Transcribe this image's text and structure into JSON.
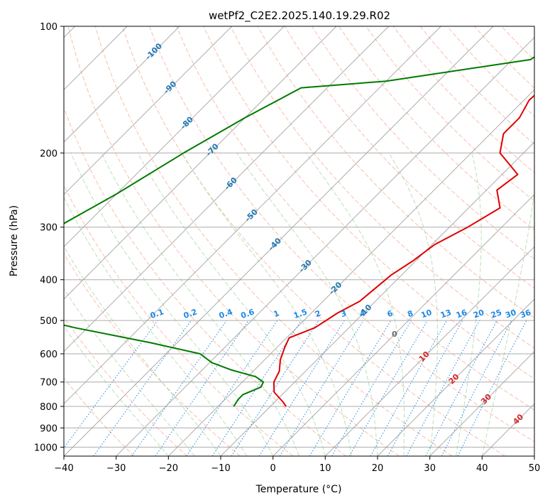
{
  "chart_data": {
    "type": "line",
    "title": "wetPf2_C2E2.2025.140.19.29.R02",
    "xlabel": "Temperature (°C)",
    "ylabel": "Pressure (hPa)",
    "xlim": [
      -40,
      50
    ],
    "ylim": [
      1050,
      100
    ],
    "y_scale": "log",
    "x_ticks": [
      "−40",
      "−30",
      "−20",
      "−10",
      "0",
      "10",
      "20",
      "30",
      "40",
      "50"
    ],
    "y_ticks": [
      "100",
      "200",
      "300",
      "400",
      "500",
      "600",
      "700",
      "800",
      "900",
      "1000"
    ],
    "y_tick_values": [
      100,
      200,
      300,
      400,
      500,
      600,
      700,
      800,
      900,
      1000
    ],
    "skew": 45,
    "grid": true,
    "legend": "none",
    "series": [
      {
        "color": "#e00000",
        "points": [
          [
            -25.5,
            100
          ],
          [
            -25.5,
            110
          ],
          [
            -22,
            118
          ],
          [
            -18.5,
            130
          ],
          [
            -19,
            150
          ],
          [
            -17.5,
            165
          ],
          [
            -17.5,
            180
          ],
          [
            -14.5,
            200
          ],
          [
            -7,
            225
          ],
          [
            -8,
            245
          ],
          [
            -4,
            270
          ],
          [
            -6.5,
            300
          ],
          [
            -9.5,
            330
          ],
          [
            -10.5,
            360
          ],
          [
            -12,
            390
          ],
          [
            -12.5,
            420
          ],
          [
            -13,
            450
          ],
          [
            -15,
            480
          ],
          [
            -16.5,
            520
          ],
          [
            -19.5,
            550
          ],
          [
            -18.5,
            580
          ],
          [
            -17,
            620
          ],
          [
            -15,
            660
          ],
          [
            -14,
            700
          ],
          [
            -12,
            740
          ],
          [
            -8.5,
            780
          ],
          [
            -7,
            800
          ]
        ]
      },
      {
        "color": "#007a00",
        "points": [
          [
            -25,
            100
          ],
          [
            -25,
            110
          ],
          [
            -26.5,
            120
          ],
          [
            -50,
            135
          ],
          [
            -65,
            140
          ],
          [
            -70,
            165
          ],
          [
            -75,
            200
          ],
          [
            -80,
            250
          ],
          [
            -85,
            300
          ],
          [
            -89,
            345
          ],
          [
            -101.5,
            420
          ],
          [
            -62.5,
            520
          ],
          [
            -45,
            565
          ],
          [
            -33.5,
            600
          ],
          [
            -29.5,
            630
          ],
          [
            -24.5,
            655
          ],
          [
            -18.5,
            680
          ],
          [
            -16,
            700
          ],
          [
            -15.5,
            720
          ],
          [
            -17.5,
            750
          ],
          [
            -17.5,
            770
          ],
          [
            -17,
            800
          ]
        ]
      }
    ],
    "dry_adiabats_theta_C": [
      -30,
      -20,
      -10,
      0,
      10,
      20,
      30,
      40,
      50,
      60,
      70,
      80,
      90,
      100,
      110,
      120,
      130,
      140,
      150,
      160,
      170,
      180
    ],
    "moist_adiabats_C": [
      -20,
      -15,
      -10,
      -5,
      0,
      5,
      10,
      15,
      20,
      25,
      30,
      35,
      40
    ],
    "mixing_ratios_gkg": [
      "0.1",
      "0.2",
      "0.4",
      "0.6",
      "1",
      "1.5",
      "2",
      "3",
      "4",
      "6",
      "8",
      "10",
      "13",
      "16",
      "20",
      "25",
      "30",
      "36"
    ],
    "isotherm_labels_blue": [
      "-100",
      "-90",
      "-80",
      "-70",
      "-60",
      "-50",
      "-40",
      "-30",
      "-20",
      "-10"
    ],
    "isotherm_labels_red": [
      "10",
      "20",
      "30",
      "40"
    ],
    "isotherm_label_gray": "0"
  }
}
